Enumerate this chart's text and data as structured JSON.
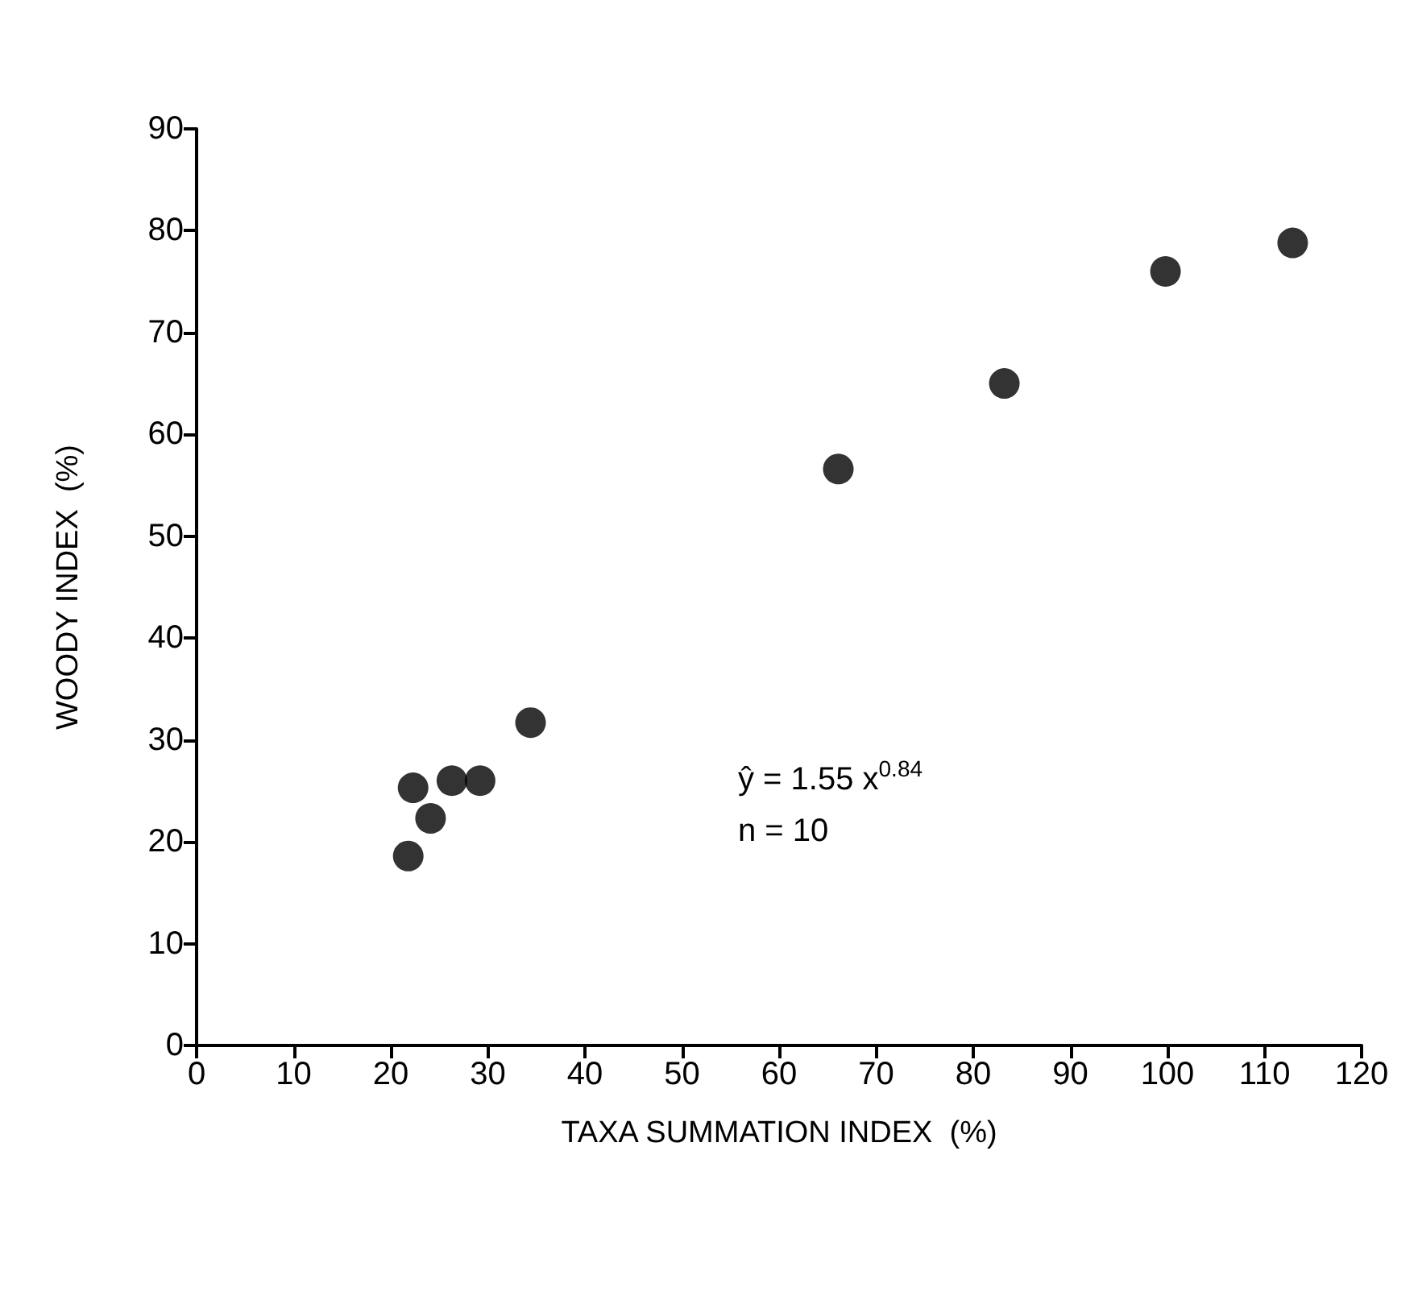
{
  "chart_data": {
    "type": "scatter",
    "xlabel": "TAXA SUMMATION INDEX  (%)",
    "ylabel": "WOODY INDEX  (%)",
    "x": [
      21.8,
      22.3,
      24.1,
      26.3,
      29.2,
      34.4,
      66.1,
      83.2,
      99.8,
      112.9
    ],
    "series": [
      {
        "color": "#000000",
        "values": [
          18.6,
          25.3,
          22.3,
          26.0,
          26.0,
          31.7,
          56.6,
          65.0,
          76.0,
          78.8
        ]
      }
    ],
    "xlim": [
      0,
      120
    ],
    "xticks": [
      0,
      10,
      20,
      30,
      40,
      50,
      60,
      70,
      80,
      90,
      100,
      110,
      120
    ],
    "ylim": [
      0,
      90
    ],
    "yticks": [
      0,
      10,
      20,
      30,
      40,
      50,
      60,
      70,
      80,
      90
    ],
    "annotations": [
      "ŷ = 1.55 x$^{0.84}$",
      "n = 10"
    ],
    "marker": "circle"
  }
}
